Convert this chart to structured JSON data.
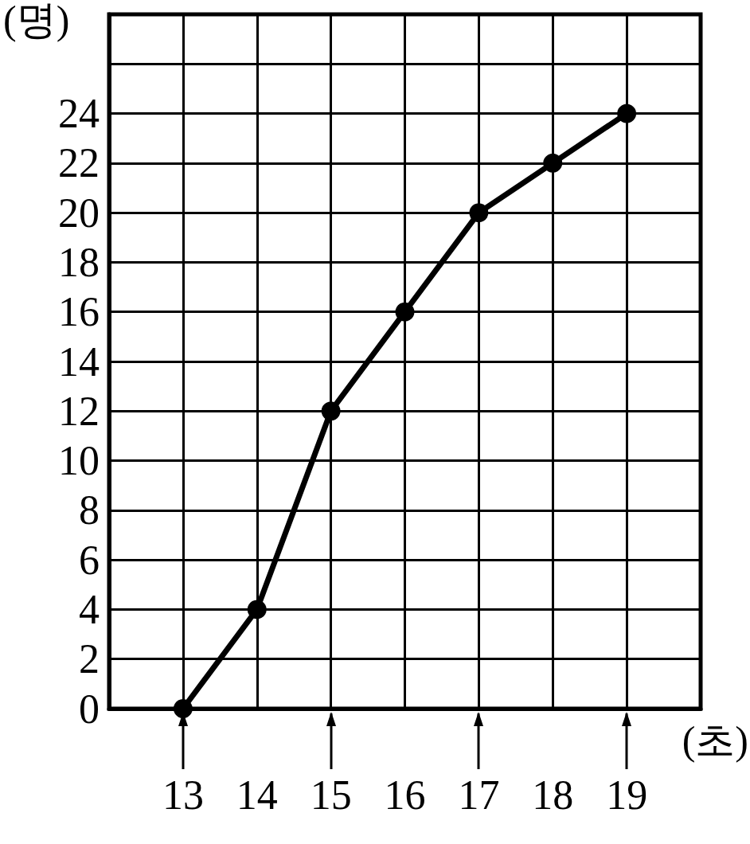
{
  "chart_data": {
    "type": "line",
    "xlabel": "(초)",
    "ylabel": "(명)",
    "x": [
      13,
      14,
      15,
      16,
      17,
      18,
      19
    ],
    "values": [
      0,
      4,
      12,
      16,
      20,
      22,
      24
    ],
    "color": "#000000",
    "xlim": [
      12,
      20
    ],
    "xticks": [
      {
        "value": 12,
        "label": null
      },
      13,
      14,
      15,
      16,
      17,
      18,
      19,
      {
        "value": 20,
        "label": null
      }
    ],
    "ylim": [
      0,
      28
    ],
    "yticks": [
      0,
      2,
      4,
      6,
      8,
      10,
      12,
      14,
      16,
      18,
      20,
      22,
      24,
      {
        "value": 26,
        "label": null
      },
      {
        "value": 28,
        "label": null
      }
    ],
    "grid": true,
    "marker": "circle",
    "line_style": "solid"
  }
}
